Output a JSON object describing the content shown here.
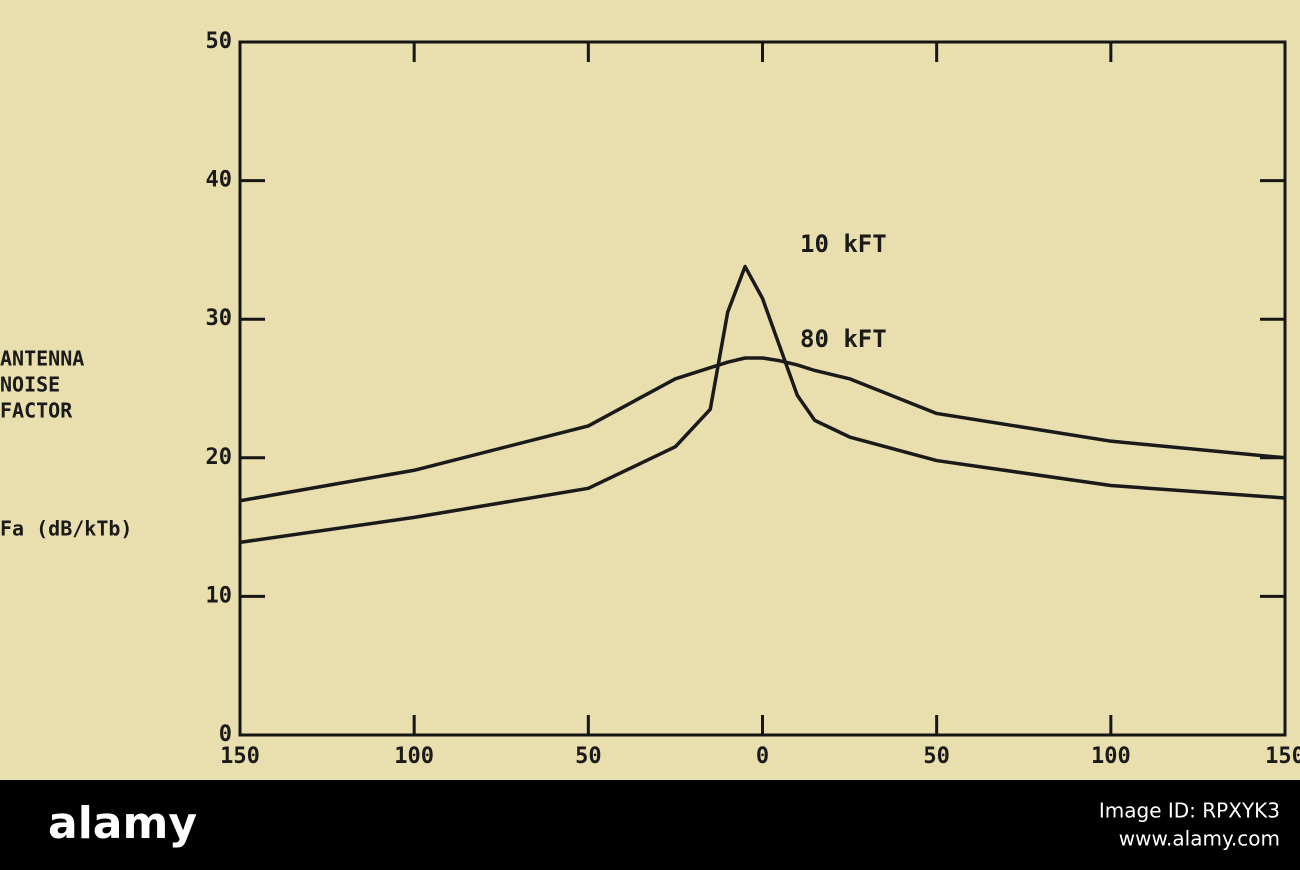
{
  "chart_data": {
    "type": "line",
    "ylabel": [
      "ANTENNA",
      "NOISE",
      "FACTOR"
    ],
    "ylabel_unit": "Fa (dB/kTb)",
    "x": [
      -150,
      -100,
      -50,
      -25,
      -15,
      -10,
      -5,
      0,
      5,
      10,
      15,
      25,
      50,
      100,
      150
    ],
    "series": [
      {
        "name": "10 kFT",
        "color": "#1a1a1a",
        "values": [
          13.9,
          15.7,
          17.8,
          20.8,
          23.5,
          30.5,
          33.8,
          31.5,
          28,
          24.5,
          22.7,
          21.5,
          19.8,
          18,
          17.1
        ]
      },
      {
        "name": "80 kFT",
        "color": "#1a1a1a",
        "values": [
          16.9,
          19.1,
          22.3,
          25.7,
          26.5,
          26.9,
          27.2,
          27.2,
          27.0,
          26.7,
          26.3,
          25.7,
          23.2,
          21.2,
          20.0
        ]
      }
    ],
    "xlim": [
      -150,
      150
    ],
    "xticks": [
      {
        "value": -150,
        "label": "150"
      },
      {
        "value": -100,
        "label": "100"
      },
      {
        "value": -50,
        "label": "50"
      },
      0,
      50,
      100,
      150
    ],
    "ylim": [
      0,
      50
    ],
    "yticks": [
      0,
      10,
      20,
      30,
      40,
      50
    ]
  },
  "footer": {
    "brand": "alamy",
    "image_id": "Image ID: RPXYK3",
    "url": "www.alamy.com"
  }
}
